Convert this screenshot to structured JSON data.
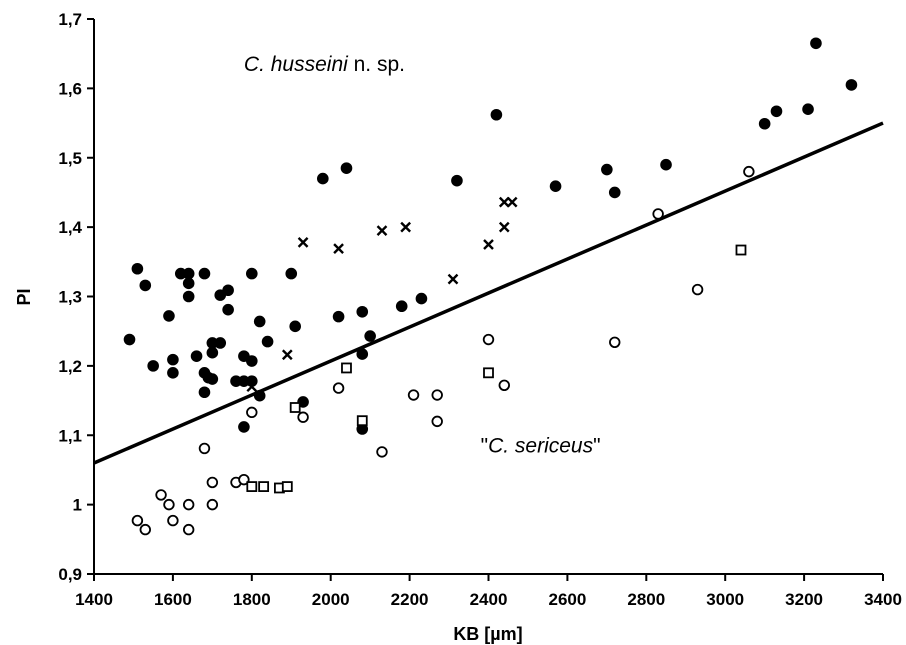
{
  "chart_data": {
    "type": "scatter",
    "xlabel": "KB [µm]",
    "ylabel": "PI",
    "xlim": [
      1400,
      3400
    ],
    "ylim": [
      0.9,
      1.7
    ],
    "x_ticks": [
      "1400",
      "1600",
      "1800",
      "2000",
      "2200",
      "2400",
      "2600",
      "2800",
      "3000",
      "3200",
      "3400"
    ],
    "y_ticks": [
      "0,9",
      "1",
      "1,1",
      "1,2",
      "1,3",
      "1,4",
      "1,5",
      "1,6",
      "1,7"
    ],
    "grid": false,
    "legend": "none",
    "annotations": [
      {
        "parts": [
          {
            "text": "C. husseini",
            "italic": true
          },
          {
            "text": " n. sp.",
            "italic": false
          }
        ],
        "at": [
          1780,
          1.625
        ]
      },
      {
        "parts": [
          {
            "text": "\"",
            "italic": false
          },
          {
            "text": "C. sericeus",
            "italic": true
          },
          {
            "text": "\"",
            "italic": false
          }
        ],
        "at": [
          2380,
          1.075
        ]
      }
    ],
    "series": [
      {
        "marker": "filled-circle",
        "points": [
          [
            1490,
            1.238
          ],
          [
            1510,
            1.34
          ],
          [
            1530,
            1.316
          ],
          [
            1550,
            1.2
          ],
          [
            1590,
            1.272
          ],
          [
            1600,
            1.209
          ],
          [
            1600,
            1.19
          ],
          [
            1620,
            1.333
          ],
          [
            1640,
            1.333
          ],
          [
            1640,
            1.319
          ],
          [
            1640,
            1.3
          ],
          [
            1660,
            1.214
          ],
          [
            1680,
            1.333
          ],
          [
            1680,
            1.19
          ],
          [
            1680,
            1.162
          ],
          [
            1690,
            1.183
          ],
          [
            1700,
            1.233
          ],
          [
            1700,
            1.219
          ],
          [
            1700,
            1.181
          ],
          [
            1720,
            1.302
          ],
          [
            1720,
            1.233
          ],
          [
            1740,
            1.309
          ],
          [
            1740,
            1.281
          ],
          [
            1760,
            1.178
          ],
          [
            1780,
            1.214
          ],
          [
            1780,
            1.178
          ],
          [
            1780,
            1.112
          ],
          [
            1800,
            1.333
          ],
          [
            1800,
            1.207
          ],
          [
            1800,
            1.178
          ],
          [
            1820,
            1.264
          ],
          [
            1820,
            1.157
          ],
          [
            1840,
            1.235
          ],
          [
            1900,
            1.333
          ],
          [
            1910,
            1.257
          ],
          [
            1930,
            1.148
          ],
          [
            1980,
            1.47
          ],
          [
            2020,
            1.271
          ],
          [
            2040,
            1.485
          ],
          [
            2080,
            1.278
          ],
          [
            2080,
            1.217
          ],
          [
            2080,
            1.109
          ],
          [
            2100,
            1.243
          ],
          [
            2180,
            1.286
          ],
          [
            2230,
            1.297
          ],
          [
            2320,
            1.467
          ],
          [
            2420,
            1.562
          ],
          [
            2570,
            1.459
          ],
          [
            2700,
            1.483
          ],
          [
            2720,
            1.45
          ],
          [
            2850,
            1.49
          ],
          [
            3100,
            1.549
          ],
          [
            3130,
            1.567
          ],
          [
            3210,
            1.57
          ],
          [
            3230,
            1.665
          ],
          [
            3320,
            1.605
          ]
        ]
      },
      {
        "marker": "open-circle",
        "points": [
          [
            1510,
            0.977
          ],
          [
            1530,
            0.964
          ],
          [
            1570,
            1.014
          ],
          [
            1590,
            1.0
          ],
          [
            1600,
            0.977
          ],
          [
            1640,
            0.964
          ],
          [
            1640,
            1.0
          ],
          [
            1680,
            1.081
          ],
          [
            1700,
            1.032
          ],
          [
            1700,
            1.0
          ],
          [
            1760,
            1.032
          ],
          [
            1780,
            1.036
          ],
          [
            1800,
            1.133
          ],
          [
            1930,
            1.126
          ],
          [
            2020,
            1.168
          ],
          [
            2130,
            1.076
          ],
          [
            2210,
            1.158
          ],
          [
            2270,
            1.158
          ],
          [
            2270,
            1.12
          ],
          [
            2400,
            1.238
          ],
          [
            2440,
            1.172
          ],
          [
            2720,
            1.234
          ],
          [
            2830,
            1.419
          ],
          [
            2930,
            1.31
          ],
          [
            3060,
            1.48
          ]
        ]
      },
      {
        "marker": "open-square",
        "points": [
          [
            1800,
            1.026
          ],
          [
            1830,
            1.026
          ],
          [
            1870,
            1.024
          ],
          [
            1890,
            1.026
          ],
          [
            1910,
            1.14
          ],
          [
            2040,
            1.197
          ],
          [
            2080,
            1.121
          ],
          [
            2400,
            1.19
          ],
          [
            3040,
            1.367
          ]
        ]
      },
      {
        "marker": "cross",
        "points": [
          [
            1800,
            1.17
          ],
          [
            1890,
            1.216
          ],
          [
            1930,
            1.378
          ],
          [
            2020,
            1.369
          ],
          [
            2130,
            1.395
          ],
          [
            2190,
            1.4
          ],
          [
            2310,
            1.325
          ],
          [
            2400,
            1.375
          ],
          [
            2440,
            1.4
          ],
          [
            2440,
            1.436
          ],
          [
            2460,
            1.436
          ]
        ]
      }
    ],
    "regression_line": {
      "x": [
        1400,
        3400
      ],
      "y": [
        1.06,
        1.55
      ]
    }
  }
}
